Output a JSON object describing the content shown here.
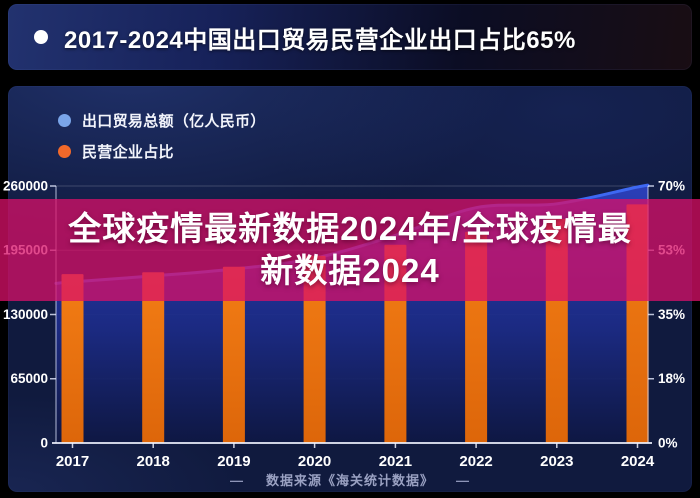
{
  "header": {
    "bullet_icon": "white-circle",
    "title": "2017-2024中国出口贸易民营企业出口占比65%"
  },
  "legend": {
    "items": [
      {
        "label": "出口贸易总额（亿人民币）",
        "color": "#7aa5e9"
      },
      {
        "label": "民营企业占比",
        "color": "#f2692a"
      }
    ]
  },
  "overlay": {
    "text_full": "全球疫情最新数据2024年/全球疫情最新数据2024",
    "line1": "全球疫情最新数据2024年/全球疫情最",
    "line2": "新数据2024",
    "band_rgba": "rgba(216,16,104,0.76)"
  },
  "footer": {
    "dash_left": "—",
    "source": "数据来源《海关统计数据》",
    "dash_right": "—"
  },
  "chart_data": {
    "type": "combo (area-line + bar)",
    "title": "2017-2024中国出口贸易民营企业出口占比65%",
    "categories": [
      "2017",
      "2018",
      "2019",
      "2020",
      "2021",
      "2022",
      "2023",
      "2024"
    ],
    "series": [
      {
        "name": "出口贸易总额（亿人民币）",
        "chart": "area",
        "axis": "left",
        "line_color": "#3e68f2",
        "fill_top": "#2c40bc",
        "fill_bottom": "#0e1743",
        "values": [
          163000,
          169000,
          176000,
          187000,
          210000,
          238000,
          242000,
          259000
        ]
      },
      {
        "name": "民营企业占比",
        "chart": "bar",
        "axis": "right",
        "color": "#e9720e",
        "unit": "%",
        "values": [
          46,
          46.5,
          48,
          51,
          54,
          57.5,
          61,
          65
        ]
      }
    ],
    "y_axis_left": {
      "min": 0,
      "max": 260000,
      "ticks": [
        "0",
        "65000",
        "130000",
        "195000",
        "260000"
      ]
    },
    "y_axis_right": {
      "min": 0,
      "max": 70,
      "ticks": [
        "0%",
        "18%",
        "35%",
        "53%",
        "70%"
      ]
    },
    "grid": true,
    "legend_position": "top-left",
    "source": "数据来源《海关统计数据》"
  }
}
